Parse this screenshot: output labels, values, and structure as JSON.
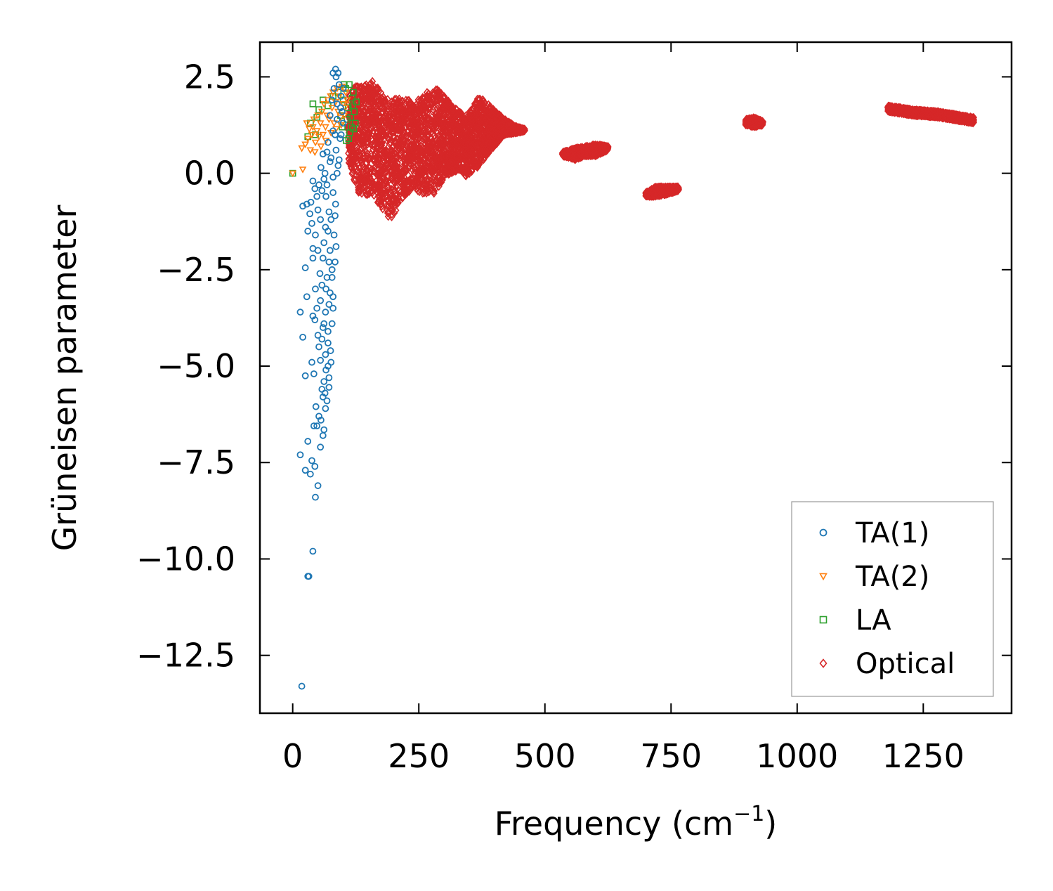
{
  "chart_data": {
    "type": "scatter",
    "title": "",
    "xlabel": "Frequency (cm",
    "xlabel_sup": "−1",
    "xlabel_close": ")",
    "ylabel": "Grüneisen parameter",
    "xlim": [
      -65,
      1425
    ],
    "ylim": [
      -14.0,
      3.4
    ],
    "xticks": [
      0,
      250,
      500,
      750,
      1000,
      1250
    ],
    "xtick_labels": [
      "0",
      "250",
      "500",
      "750",
      "1000",
      "1250"
    ],
    "yticks": [
      2.5,
      0.0,
      -2.5,
      -5.0,
      -7.5,
      -10.0,
      -12.5
    ],
    "ytick_labels": [
      "2.5",
      "0.0",
      "−2.5",
      "−5.0",
      "−7.5",
      "−10.0",
      "−12.5"
    ],
    "legend_position": "lower-right",
    "series": [
      {
        "name": "TA(1)",
        "marker": "circle",
        "color": "#1f77b4",
        "points": [
          [
            18,
            -13.3
          ],
          [
            30,
            -10.45
          ],
          [
            32,
            -10.45
          ],
          [
            40,
            -9.8
          ],
          [
            45,
            -8.4
          ],
          [
            50,
            -8.1
          ],
          [
            15,
            -7.3
          ],
          [
            25,
            -7.7
          ],
          [
            35,
            -7.8
          ],
          [
            38,
            -7.45
          ],
          [
            44,
            -7.6
          ],
          [
            30,
            -6.95
          ],
          [
            55,
            -7.1
          ],
          [
            60,
            -6.8
          ],
          [
            48,
            -6.55
          ],
          [
            42,
            -6.55
          ],
          [
            52,
            -6.3
          ],
          [
            65,
            -6.1
          ],
          [
            68,
            -5.9
          ],
          [
            58,
            -5.6
          ],
          [
            62,
            -5.4
          ],
          [
            72,
            -5.55
          ],
          [
            25,
            -5.25
          ],
          [
            38,
            -4.9
          ],
          [
            42,
            -5.2
          ],
          [
            55,
            -4.85
          ],
          [
            65,
            -4.7
          ],
          [
            75,
            -4.6
          ],
          [
            20,
            -4.25
          ],
          [
            50,
            -4.2
          ],
          [
            60,
            -4.0
          ],
          [
            70,
            -4.1
          ],
          [
            78,
            -3.9
          ],
          [
            15,
            -3.6
          ],
          [
            40,
            -3.7
          ],
          [
            48,
            -3.5
          ],
          [
            55,
            -3.3
          ],
          [
            65,
            -3.6
          ],
          [
            72,
            -3.4
          ],
          [
            80,
            -3.2
          ],
          [
            28,
            -3.2
          ],
          [
            45,
            -3.0
          ],
          [
            58,
            -2.9
          ],
          [
            68,
            -2.7
          ],
          [
            78,
            -2.5
          ],
          [
            84,
            -2.3
          ],
          [
            25,
            -2.45
          ],
          [
            40,
            -2.2
          ],
          [
            50,
            -2.0
          ],
          [
            62,
            -1.8
          ],
          [
            74,
            -2.0
          ],
          [
            82,
            -1.6
          ],
          [
            40,
            -1.95
          ],
          [
            30,
            -1.5
          ],
          [
            38,
            -1.3
          ],
          [
            45,
            -1.6
          ],
          [
            55,
            -1.2
          ],
          [
            65,
            -1.4
          ],
          [
            72,
            -1.0
          ],
          [
            85,
            -0.8
          ],
          [
            20,
            -0.85
          ],
          [
            28,
            -0.8
          ],
          [
            36,
            -0.75
          ],
          [
            48,
            -0.6
          ],
          [
            58,
            -0.45
          ],
          [
            68,
            -0.3
          ],
          [
            80,
            -0.1
          ],
          [
            90,
            0.2
          ],
          [
            40,
            -0.2
          ],
          [
            52,
            -0.3
          ],
          [
            64,
            0.0
          ],
          [
            74,
            0.3
          ],
          [
            86,
            0.6
          ],
          [
            94,
            0.9
          ],
          [
            60,
            0.5
          ],
          [
            70,
            0.8
          ],
          [
            80,
            1.1
          ],
          [
            88,
            1.4
          ],
          [
            95,
            1.7
          ],
          [
            78,
            1.9
          ],
          [
            82,
            2.2
          ],
          [
            86,
            2.5
          ],
          [
            90,
            2.6
          ],
          [
            92,
            2.3
          ],
          [
            96,
            2.0
          ],
          [
            98,
            1.6
          ],
          [
            100,
            1.3
          ],
          [
            84,
            1.0
          ],
          [
            76,
            0.4
          ],
          [
            66,
            -0.6
          ],
          [
            76,
            -1.2
          ],
          [
            86,
            -1.9
          ],
          [
            78,
            -2.7
          ],
          [
            74,
            -3.1
          ],
          [
            80,
            -3.5
          ],
          [
            70,
            -4.4
          ],
          [
            76,
            -4.9
          ],
          [
            66,
            -5.1
          ],
          [
            72,
            -5.3
          ],
          [
            60,
            -5.8
          ],
          [
            56,
            -6.4
          ],
          [
            62,
            -6.65
          ],
          [
            46,
            -6.05
          ],
          [
            52,
            -4.5
          ],
          [
            44,
            -3.8
          ],
          [
            54,
            -2.6
          ],
          [
            60,
            -2.2
          ],
          [
            70,
            -1.5
          ],
          [
            50,
            -0.95
          ],
          [
            34,
            -1.05
          ],
          [
            44,
            -0.4
          ],
          [
            56,
            0.15
          ],
          [
            68,
            0.55
          ],
          [
            62,
            -0.15
          ],
          [
            88,
            0.0
          ],
          [
            92,
            0.35
          ],
          [
            96,
            1.0
          ],
          [
            100,
            2.2
          ],
          [
            80,
            2.6
          ],
          [
            85,
            2.7
          ],
          [
            88,
            1.8
          ],
          [
            74,
            1.5
          ],
          [
            80,
            -0.5
          ],
          [
            84,
            -1.1
          ],
          [
            72,
            -2.3
          ],
          [
            66,
            -3.0
          ],
          [
            62,
            -3.9
          ],
          [
            58,
            -4.3
          ],
          [
            70,
            -5.0
          ],
          [
            64,
            -5.7
          ]
        ]
      },
      {
        "name": "TA(2)",
        "marker": "triangle-down",
        "color": "#ff7f0e",
        "points": [
          [
            0,
            0.0
          ],
          [
            20,
            0.1
          ],
          [
            18,
            0.65
          ],
          [
            25,
            0.75
          ],
          [
            30,
            0.9
          ],
          [
            35,
            0.6
          ],
          [
            38,
            1.0
          ],
          [
            40,
            1.2
          ],
          [
            42,
            1.4
          ],
          [
            45,
            0.8
          ],
          [
            48,
            1.1
          ],
          [
            50,
            1.5
          ],
          [
            52,
            0.95
          ],
          [
            55,
            1.3
          ],
          [
            58,
            1.6
          ],
          [
            60,
            1.0
          ],
          [
            62,
            1.8
          ],
          [
            65,
            1.2
          ],
          [
            68,
            1.5
          ],
          [
            70,
            1.9
          ],
          [
            72,
            1.4
          ],
          [
            75,
            2.0
          ],
          [
            78,
            1.7
          ],
          [
            80,
            2.1
          ],
          [
            82,
            1.3
          ],
          [
            85,
            1.85
          ],
          [
            88,
            2.2
          ],
          [
            90,
            1.6
          ],
          [
            92,
            2.0
          ],
          [
            95,
            1.45
          ],
          [
            98,
            2.25
          ],
          [
            100,
            1.8
          ],
          [
            102,
            1.5
          ],
          [
            105,
            2.1
          ],
          [
            28,
            1.3
          ],
          [
            33,
            1.15
          ],
          [
            44,
            0.55
          ],
          [
            56,
            0.7
          ],
          [
            66,
            0.85
          ],
          [
            76,
            1.05
          ],
          [
            86,
            1.15
          ],
          [
            96,
            1.25
          ],
          [
            104,
            1.7
          ],
          [
            108,
            1.9
          ]
        ]
      },
      {
        "name": "LA",
        "marker": "square",
        "color": "#2ca02c",
        "points": [
          [
            0,
            0.0
          ],
          [
            40,
            1.8
          ],
          [
            60,
            1.9
          ],
          [
            52,
            1.65
          ],
          [
            48,
            1.45
          ],
          [
            35,
            1.3
          ],
          [
            30,
            0.95
          ],
          [
            45,
            1.0
          ],
          [
            70,
            1.75
          ],
          [
            80,
            2.0
          ],
          [
            90,
            2.1
          ],
          [
            95,
            1.5
          ],
          [
            100,
            1.9
          ],
          [
            105,
            2.2
          ],
          [
            110,
            1.7
          ],
          [
            112,
            2.3
          ],
          [
            115,
            1.45
          ],
          [
            118,
            1.95
          ],
          [
            120,
            2.1
          ],
          [
            122,
            1.6
          ],
          [
            124,
            1.3
          ],
          [
            126,
            1.85
          ],
          [
            116,
            1.2
          ],
          [
            108,
            1.4
          ],
          [
            102,
            2.3
          ],
          [
            98,
            1.2
          ],
          [
            113,
            1.05
          ],
          [
            119,
            1.75
          ],
          [
            121,
            1.15
          ],
          [
            111,
            0.9
          ],
          [
            106,
            0.85
          ]
        ]
      },
      {
        "name": "Optical",
        "marker": "diamond",
        "color": "#d62728",
        "clusters": [
          {
            "x": [
              110,
              460
            ],
            "centerline": "envelope",
            "envelope": [
              [
                110,
                0.3,
                2.1
              ],
              [
                130,
                -0.5,
                2.3
              ],
              [
                160,
                -0.6,
                2.4
              ],
              [
                180,
                -1.0,
                2.0
              ],
              [
                195,
                -1.2,
                1.9
              ],
              [
                220,
                -0.6,
                2.0
              ],
              [
                240,
                -0.4,
                1.8
              ],
              [
                265,
                -0.6,
                2.1
              ],
              [
                285,
                -0.5,
                2.2
              ],
              [
                300,
                -0.1,
                2.0
              ],
              [
                330,
                0.1,
                1.6
              ],
              [
                345,
                -0.1,
                1.5
              ],
              [
                370,
                0.2,
                2.0
              ],
              [
                395,
                0.6,
                1.7
              ],
              [
                420,
                1.0,
                1.4
              ],
              [
                445,
                1.05,
                1.2
              ],
              [
                460,
                1.1,
                1.15
              ]
            ]
          },
          {
            "x": [
              535,
              625
            ],
            "envelope": [
              [
                535,
                0.45,
                0.55
              ],
              [
                560,
                0.35,
                0.65
              ],
              [
                580,
                0.45,
                0.7
              ],
              [
                600,
                0.45,
                0.75
              ],
              [
                625,
                0.6,
                0.7
              ]
            ]
          },
          {
            "x": [
              700,
              765
            ],
            "envelope": [
              [
                700,
                -0.6,
                -0.5
              ],
              [
                720,
                -0.6,
                -0.35
              ],
              [
                740,
                -0.55,
                -0.35
              ],
              [
                765,
                -0.45,
                -0.35
              ]
            ]
          },
          {
            "x": [
              898,
              932
            ],
            "envelope": [
              [
                898,
                1.25,
                1.4
              ],
              [
                915,
                1.2,
                1.45
              ],
              [
                932,
                1.25,
                1.35
              ]
            ]
          },
          {
            "x": [
              1180,
              1350
            ],
            "envelope": [
              [
                1180,
                1.6,
                1.75
              ],
              [
                1230,
                1.5,
                1.65
              ],
              [
                1280,
                1.45,
                1.6
              ],
              [
                1350,
                1.3,
                1.45
              ]
            ]
          }
        ]
      }
    ]
  }
}
